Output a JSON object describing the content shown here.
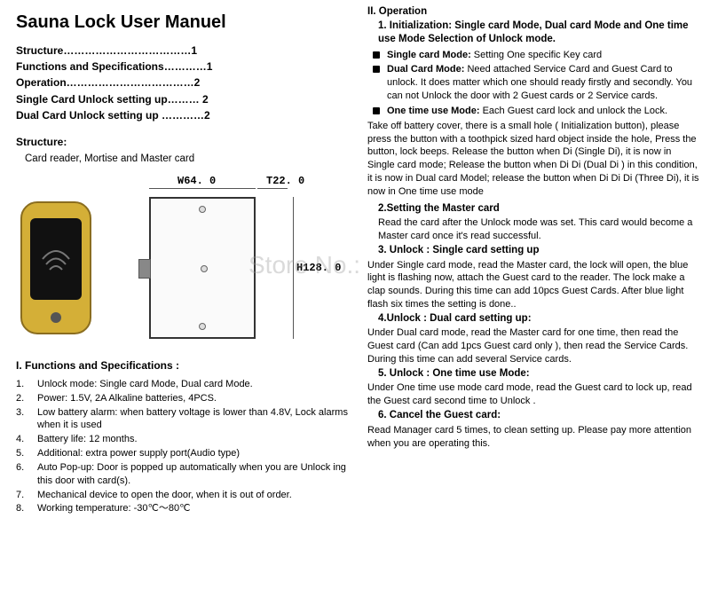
{
  "title": "Sauna Lock User Manuel",
  "toc": [
    {
      "label": "Structure",
      "dots": "………………………………",
      "page": "1"
    },
    {
      "label": "Functions and Specifications",
      "dots": "…………",
      "page": "1"
    },
    {
      "label": "Operation",
      "dots": "………………………………",
      "page": "2"
    },
    {
      "label": "Single Card Unlock    setting up",
      "dots": "………",
      "page": " 2"
    },
    {
      "label": "Dual Card Unlock    setting up",
      "dots": " …………",
      "page": "2"
    }
  ],
  "structure": {
    "heading": "Structure:",
    "text": "Card reader, Mortise and Master card"
  },
  "dims": {
    "w": "W64. 0",
    "t": "T22. 0",
    "h": "H128. 0"
  },
  "watermark": "Store No.:",
  "specs": {
    "heading": "I. Functions and Specifications :",
    "items": [
      "Unlock mode: Single card Mode, Dual card Mode.",
      "Power:  1.5V, 2A Alkaline batteries, 4PCS.",
      "Low battery alarm: when battery voltage is lower than 4.8V, Lock alarms when it is used",
      "Battery life: 12 months.",
      "Additional: extra power supply port(Audio type)",
      "Auto Pop-up: Door is popped up automatically when you are Unlock ing this door with card(s).",
      "Mechanical device to open the door, when it is out of order.",
      "Working temperature: -30℃～80℃"
    ]
  },
  "right": {
    "op_hdr": "II. Operation",
    "init_hdr": "1. Initialization: Single card Mode, Dual card Mode and One time use Mode Selection of Unlock   mode.",
    "b1_t": "Single card Mode:",
    "b1_b": " Setting One specific Key card",
    "b2_t": "Dual Card Mode:",
    "b2_b": " Need attached Service Card and Guest Card to unlock. It does matter which one should ready firstly and secondly. You can not Unlock    the door with 2 Guest cards or 2 Service cards.",
    "b3_t": "One time use Mode:",
    "b3_b": " Each Guest card lock and unlock the Lock.",
    "init_body": "Take off battery cover, there is a small hole ( Initialization button), please press the button with a toothpick sized hard object inside the hole, Press the button, lock beeps. Release the button when Di (Single Di), it is now in Single card mode; Release the button when Di Di (Dual Di ) in this condition, it is now in Dual card Model; release the button when Di Di Di (Three Di), it is now in One time use mode",
    "s2_t": "2.Setting the Master card",
    "s2_b": "Read the card after the Unlock mode was set. This card would become a Master card once it's read successful.",
    "s3_t": "3. Unlock :  Single card setting up",
    "s3_b": "Under Single card mode, read the Master card, the lock will open, the blue light is flashing now, attach the Guest card to the reader. The lock make a clap sounds. During this time can add 10pcs Guest Cards. After blue light flash six times the setting is done..",
    "s4_t": "4.Unlock : Dual card setting up:",
    "s4_b": "Under Dual card mode, read the Master card for one time, then read the Guest card (Can add 1pcs Guest card only ), then read the Service Cards. During this time can add several Service cards.",
    "s5_t": "5. Unlock : One time use Mode:",
    "s5_b": "Under One time use mode card mode,  read the Guest card to lock up, read the Guest card second time to Unlock .",
    "s6_t": "6. Cancel the Guest card:",
    "s6_b": " Read Manager card 5 times, to clean setting up. Please pay more attention when you are operating this."
  }
}
